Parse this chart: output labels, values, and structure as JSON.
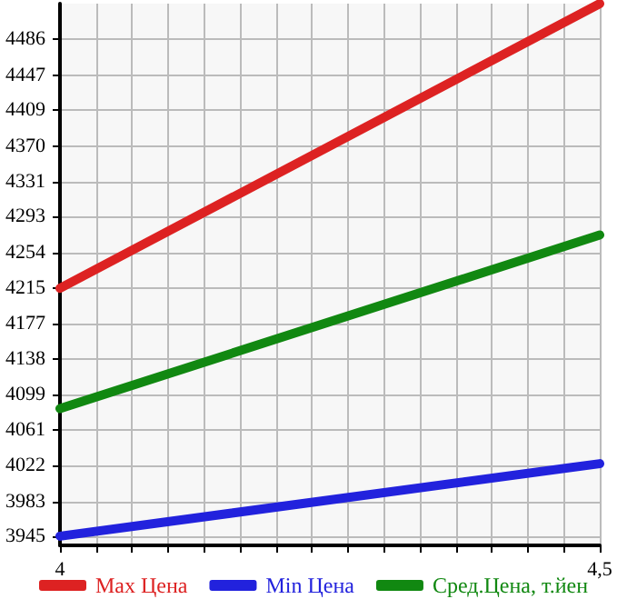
{
  "chart_data": {
    "type": "line",
    "x": [
      4,
      4.5
    ],
    "series": [
      {
        "name": "Max Цена",
        "color": "#dd2222",
        "values": [
          4215,
          4525
        ]
      },
      {
        "name": "Min Цена",
        "color": "#2222dd",
        "values": [
          3945,
          4024
        ]
      },
      {
        "name": "Сред.Цена, т.йен",
        "color": "#118811",
        "values": [
          4084,
          4273
        ]
      }
    ],
    "xlim": [
      4,
      4.5
    ],
    "xticks": [
      4,
      {
        "value": 4.0333,
        "label": null
      },
      {
        "value": 4.0667,
        "label": null
      },
      {
        "value": 4.1,
        "label": null
      },
      {
        "value": 4.1333,
        "label": null
      },
      {
        "value": 4.1667,
        "label": null
      },
      {
        "value": 4.2,
        "label": null
      },
      {
        "value": 4.2333,
        "label": null
      },
      {
        "value": 4.2667,
        "label": null
      },
      {
        "value": 4.3,
        "label": null
      },
      {
        "value": 4.3333,
        "label": null
      },
      {
        "value": 4.3667,
        "label": null
      },
      {
        "value": 4.4,
        "label": null
      },
      {
        "value": 4.4333,
        "label": null
      },
      {
        "value": 4.4667,
        "label": null
      },
      {
        "value": 4.5,
        "label": "4,5"
      }
    ],
    "ylim": [
      3935,
      4525
    ],
    "yticks": [
      3945,
      3983,
      4022,
      4061,
      4099,
      4138,
      4177,
      4215,
      4254,
      4293,
      4331,
      4370,
      4409,
      4447,
      4486
    ],
    "grid": true,
    "legend": "bottom",
    "marker": "none",
    "line_style": "solid"
  }
}
